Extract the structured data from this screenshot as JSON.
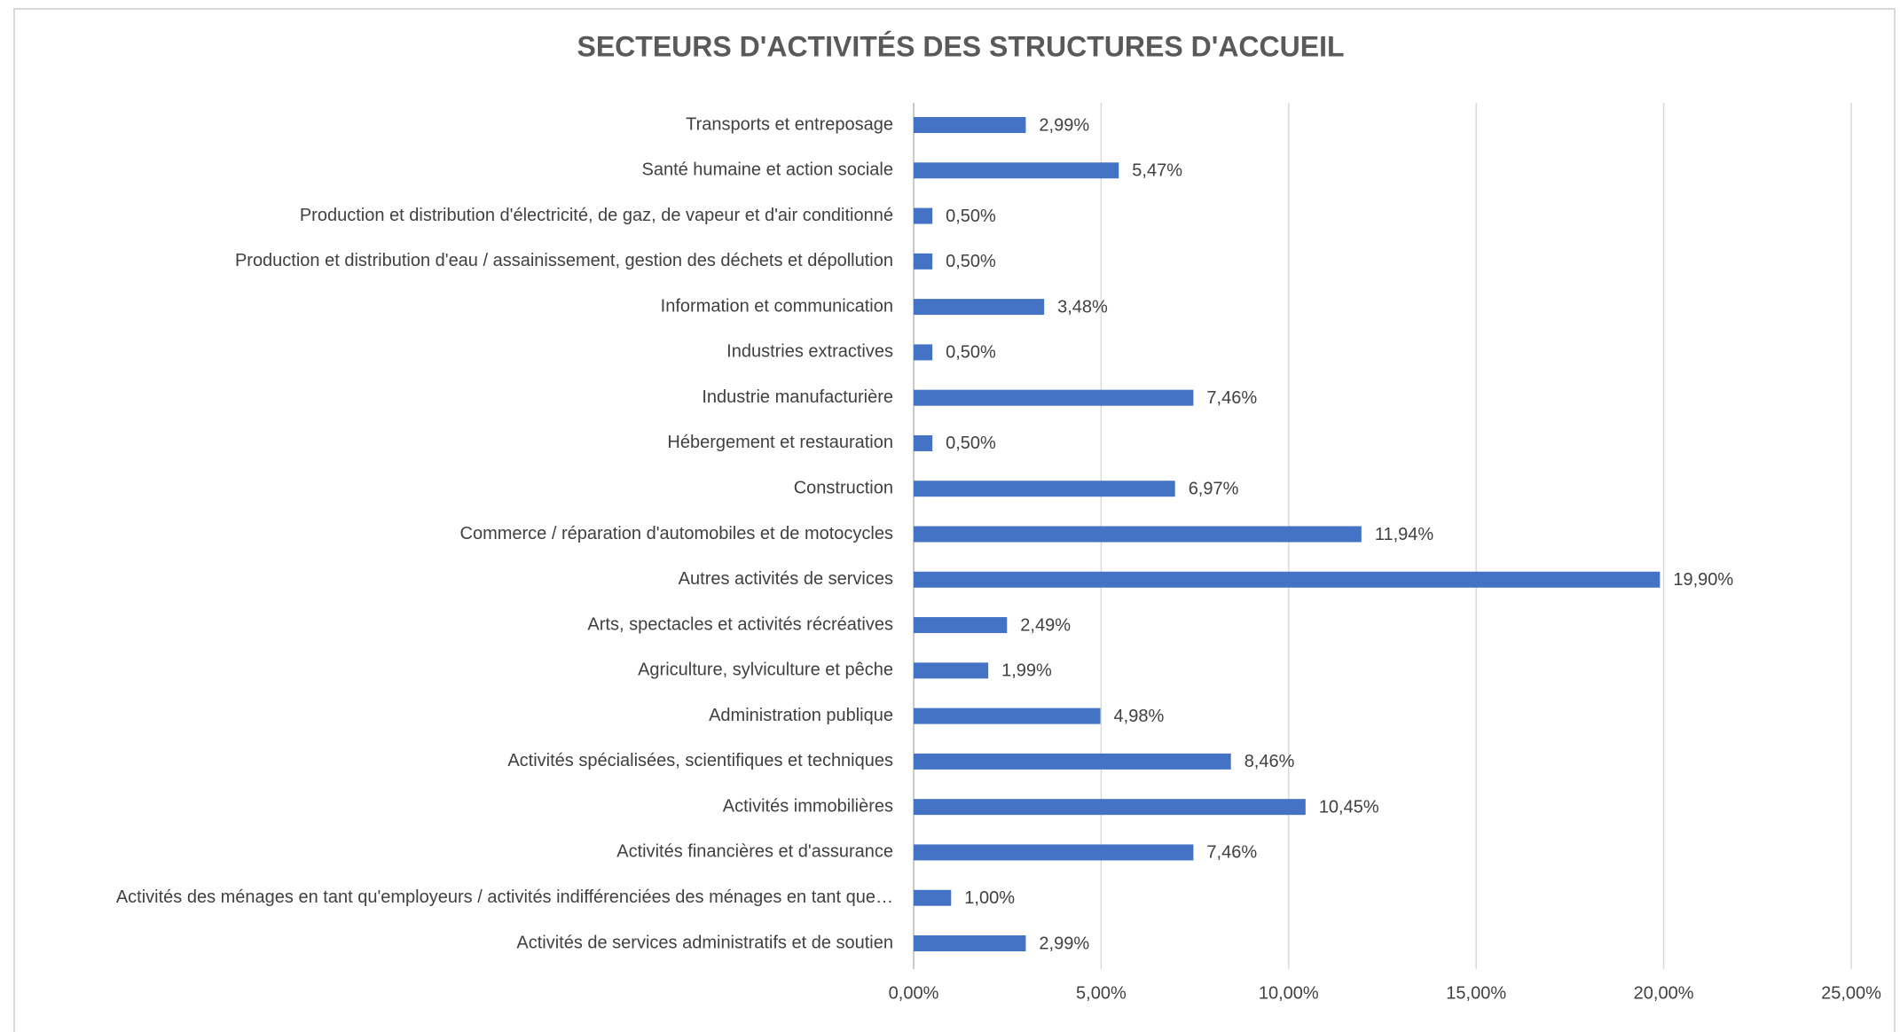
{
  "chart_data": {
    "type": "barh",
    "title": "SECTEURS D'ACTIVITÉS DES STRUCTURES D'ACCUEIL",
    "categories": [
      "Transports et entreposage",
      "Santé humaine et action sociale",
      "Production et distribution d'électricité, de gaz, de vapeur et d'air conditionné",
      "Production et distribution d'eau / assainissement, gestion des déchets et dépollution",
      "Information et communication",
      "Industries extractives",
      "Industrie manufacturière",
      "Hébergement et restauration",
      "Construction",
      "Commerce / réparation d'automobiles et de motocycles",
      "Autres activités de services",
      "Arts, spectacles et activités récréatives",
      "Agriculture, sylviculture et pêche",
      "Administration publique",
      "Activités spécialisées, scientifiques et techniques",
      "Activités immobilières",
      "Activités financières et d'assurance",
      "Activités des ménages en tant qu'employeurs / activités indifférenciées des ménages en tant que…",
      "Activités de services administratifs et de soutien"
    ],
    "values": [
      2.99,
      5.47,
      0.5,
      0.5,
      3.48,
      0.5,
      7.46,
      0.5,
      6.97,
      11.94,
      19.9,
      2.49,
      1.99,
      4.98,
      8.46,
      10.45,
      7.46,
      1.0,
      2.99
    ],
    "value_labels": [
      "2,99%",
      "5,47%",
      "0,50%",
      "0,50%",
      "3,48%",
      "0,50%",
      "7,46%",
      "0,50%",
      "6,97%",
      "11,94%",
      "19,90%",
      "2,49%",
      "1,99%",
      "4,98%",
      "8,46%",
      "10,45%",
      "7,46%",
      "1,00%",
      "2,99%"
    ],
    "color": "#4472c4",
    "xlim": [
      0,
      25
    ],
    "xticks": [
      {
        "value": 0,
        "label": "0,00%"
      },
      {
        "value": 5,
        "label": "5,00%"
      },
      {
        "value": 10,
        "label": "10,00%"
      },
      {
        "value": 15,
        "label": "15,00%"
      },
      {
        "value": 20,
        "label": "20,00%"
      },
      {
        "value": 25,
        "label": "25,00%"
      }
    ],
    "grid": true
  }
}
